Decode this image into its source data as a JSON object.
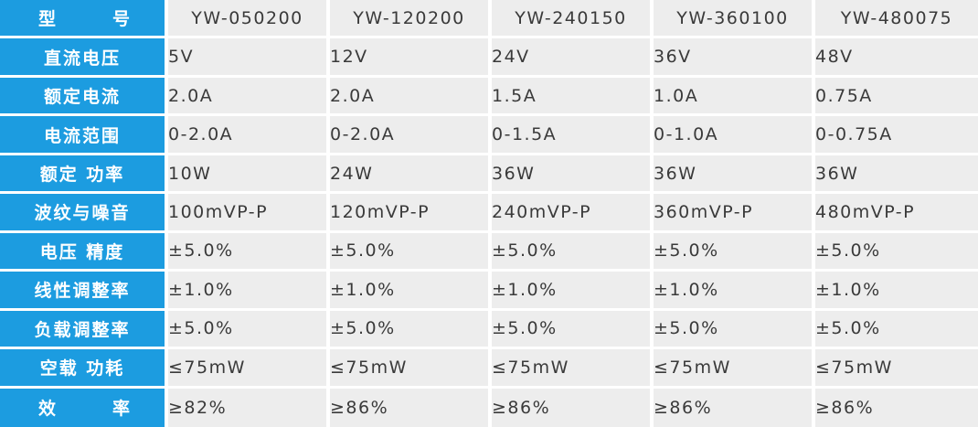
{
  "table": {
    "header": {
      "label": "型　　号",
      "models": [
        "YW-050200",
        "YW-120200",
        "YW-240150",
        "YW-360100",
        "YW-480075"
      ]
    },
    "rows": [
      {
        "label": "直流电压",
        "values": [
          "5V",
          "12V",
          "24V",
          "36V",
          "48V"
        ]
      },
      {
        "label": "额定电流",
        "values": [
          "2.0A",
          "2.0A",
          "1.5A",
          "1.0A",
          "0.75A"
        ]
      },
      {
        "label": "电流范围",
        "values": [
          "0-2.0A",
          "0-2.0A",
          "0-1.5A",
          "0-1.0A",
          "0-0.75A"
        ]
      },
      {
        "label": "额定 功率",
        "values": [
          "10W",
          "24W",
          "36W",
          "36W",
          "36W"
        ]
      },
      {
        "label": "波纹与噪音",
        "values": [
          "100mVP-P",
          "120mVP-P",
          "240mVP-P",
          "360mVP-P",
          "480mVP-P"
        ]
      },
      {
        "label": "电压 精度",
        "values": [
          "±5.0%",
          "±5.0%",
          "±5.0%",
          "±5.0%",
          "±5.0%"
        ]
      },
      {
        "label": "线性调整率",
        "values": [
          "±1.0%",
          "±1.0%",
          "±1.0%",
          "±1.0%",
          "±1.0%"
        ]
      },
      {
        "label": "负载调整率",
        "values": [
          "±5.0%",
          "±5.0%",
          "±5.0%",
          "±5.0%",
          "±5.0%"
        ]
      },
      {
        "label": "空载 功耗",
        "values": [
          "≤75mW",
          "≤75mW",
          "≤75mW",
          "≤75mW",
          "≤75mW"
        ]
      },
      {
        "label": "效　　率",
        "values": [
          "≥82%",
          "≥86%",
          "≥86%",
          "≥86%",
          "≥86%"
        ]
      }
    ]
  },
  "colors": {
    "label_bg": "#1c9ce0",
    "cell_bg": "#ededed",
    "label_text": "#ffffff",
    "cell_text": "#3a3a3a"
  }
}
